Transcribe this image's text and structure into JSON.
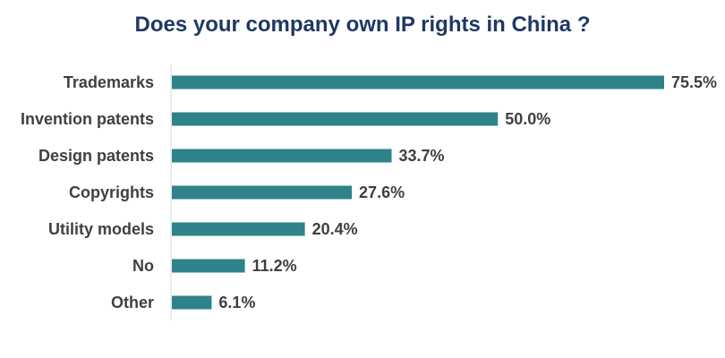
{
  "chart_data": {
    "type": "bar",
    "orientation": "horizontal",
    "title": "Does your company own IP rights in China ?",
    "categories": [
      "Trademarks",
      "Invention patents",
      "Design patents",
      "Copyrights",
      "Utility models",
      "No",
      "Other"
    ],
    "values": [
      75.5,
      50.0,
      33.7,
      27.6,
      20.4,
      11.2,
      6.1
    ],
    "value_labels": [
      "75.5%",
      "50.0%",
      "33.7%",
      "27.6%",
      "20.4%",
      "11.2%",
      "6.1%"
    ],
    "xlim": [
      0,
      100
    ],
    "unit": "%",
    "grid": false,
    "legend": "none",
    "bar_color": "#2e8289"
  }
}
